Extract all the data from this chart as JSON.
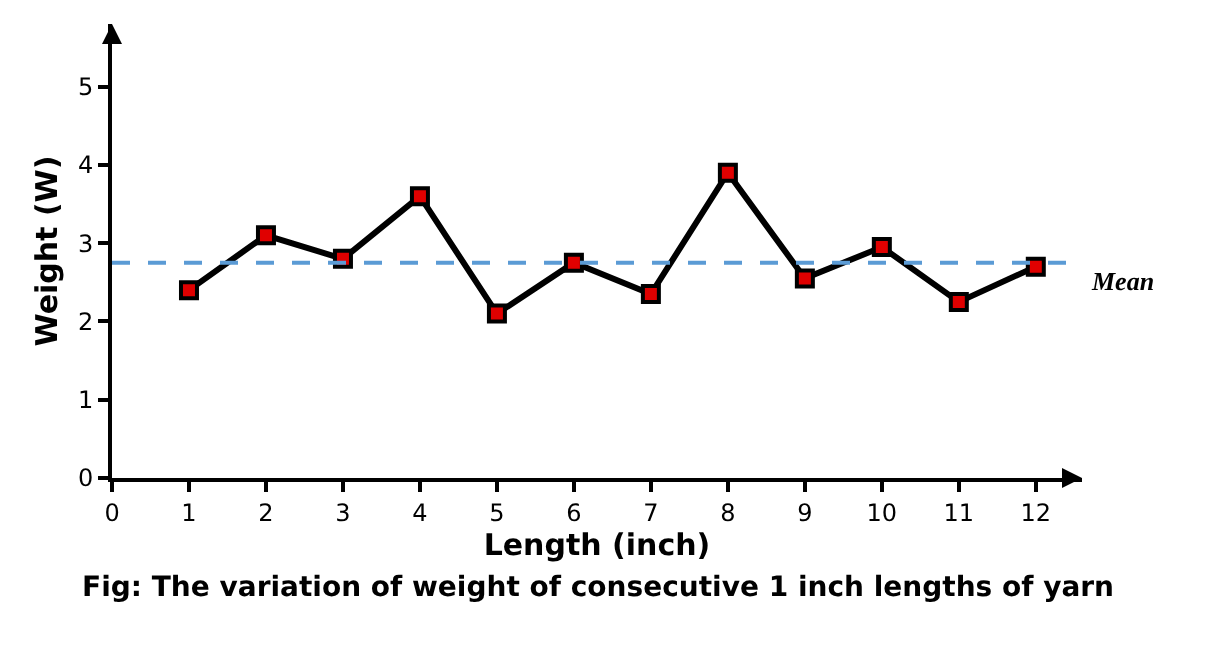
{
  "chart_data": {
    "type": "line",
    "x": [
      1,
      2,
      3,
      4,
      5,
      6,
      7,
      8,
      9,
      10,
      11,
      12
    ],
    "series": [
      {
        "color": "#000000",
        "colors": [
          "#e00000",
          "#e00000",
          "#e00000",
          "#e00000",
          "#e00000",
          "#e00000",
          "#e00000",
          "#e00000",
          "#e00000",
          "#e00000",
          "#e00000",
          "#e00000"
        ],
        "values": [
          2.4,
          3.1,
          2.8,
          3.6,
          2.1,
          2.75,
          2.35,
          3.9,
          2.55,
          2.95,
          2.25,
          2.7
        ]
      }
    ],
    "xlabel": "Length (inch)",
    "ylabel": "Weight (W)",
    "xlim": [
      0,
      12.6
    ],
    "ylim": [
      0,
      5.8
    ],
    "xticks": [
      0,
      1,
      2,
      3,
      4,
      5,
      6,
      7,
      8,
      9,
      10,
      11,
      12
    ],
    "yticks": [
      0,
      1,
      2,
      3,
      4,
      5
    ],
    "marker": "square",
    "line_style": "solid",
    "ref_lines": [
      {
        "axis": "y",
        "value": 2.75,
        "label": "Mean",
        "color": "#5b9bd5",
        "line_style": "dashed"
      }
    ],
    "annotations": [
      "Fig: The variation of weight of consecutive 1 inch lengths of yarn"
    ]
  }
}
